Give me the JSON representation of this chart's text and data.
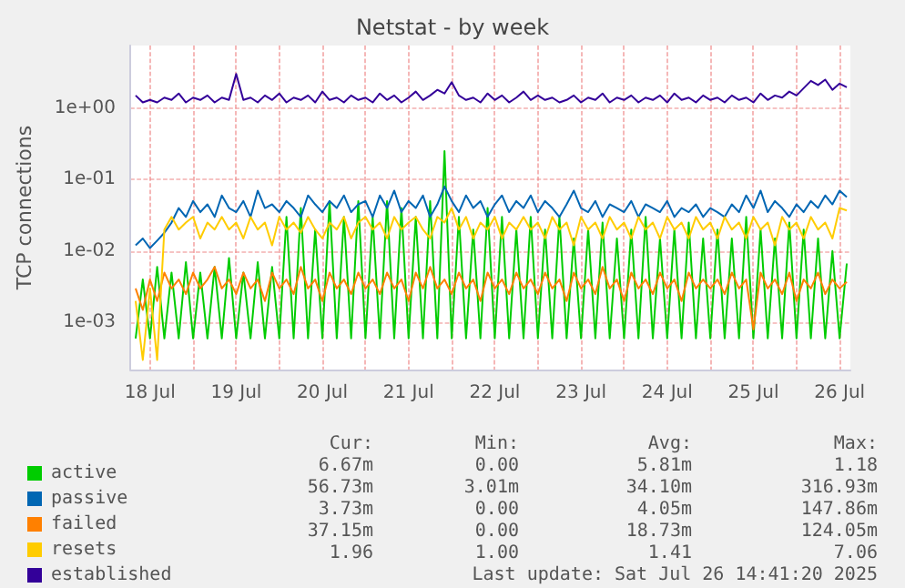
{
  "chart_data": {
    "type": "line",
    "title": "Netstat - by week",
    "ylabel": "TCP connections",
    "log": "y",
    "grid": true,
    "legend": "bottom left",
    "marker": "none",
    "line_style": "solid",
    "xlim": [
      "--07-18T06:30",
      "--07-26T15:00"
    ],
    "xticks": [
      {
        "value": "--07-18T12:00",
        "label": "18 Jul"
      },
      {
        "value": "--07-19T12:00",
        "label": "19 Jul"
      },
      {
        "value": "--07-20T12:00",
        "label": "20 Jul"
      },
      {
        "value": "--07-21T12:00",
        "label": "21 Jul"
      },
      {
        "value": "--07-22T12:00",
        "label": "22 Jul"
      },
      {
        "value": "--07-23T12:00",
        "label": "23 Jul"
      },
      {
        "value": "--07-24T12:00",
        "label": "24 Jul"
      },
      {
        "value": "--07-25T12:00",
        "label": "25 Jul"
      },
      {
        "value": "--07-26T12:00",
        "label": "26 Jul"
      },
      {
        "value": "--07-19T00:00",
        "label": null
      },
      {
        "value": "--07-20T00:00",
        "label": null
      },
      {
        "value": "--07-21T00:00",
        "label": null
      },
      {
        "value": "--07-22T00:00",
        "label": null
      },
      {
        "value": "--07-23T00:00",
        "label": null
      },
      {
        "value": "--07-24T00:00",
        "label": null
      },
      {
        "value": "--07-25T00:00",
        "label": null
      },
      {
        "value": "--07-26T00:00",
        "label": null
      }
    ],
    "ylim": [
      0.00022,
      7.5
    ],
    "yticks": [
      {
        "value": 0.001,
        "label": "1e-03"
      },
      {
        "value": 0.01,
        "label": "1e-02"
      },
      {
        "value": 0.1,
        "label": "1e-01"
      },
      {
        "value": 1,
        "label": "1e+00"
      }
    ],
    "x": [
      "--07-18T08:00",
      "--07-18T10:00",
      "--07-18T12:00",
      "--07-18T14:00",
      "--07-18T16:00",
      "--07-18T18:00",
      "--07-18T20:00",
      "--07-18T22:00",
      "--07-19T00:00",
      "--07-19T02:00",
      "--07-19T04:00",
      "--07-19T06:00",
      "--07-19T08:00",
      "--07-19T10:00",
      "--07-19T12:00",
      "--07-19T14:00",
      "--07-19T16:00",
      "--07-19T18:00",
      "--07-19T20:00",
      "--07-19T22:00",
      "--07-20T00:00",
      "--07-20T02:00",
      "--07-20T04:00",
      "--07-20T06:00",
      "--07-20T08:00",
      "--07-20T10:00",
      "--07-20T12:00",
      "--07-20T14:00",
      "--07-20T16:00",
      "--07-20T18:00",
      "--07-20T20:00",
      "--07-20T22:00",
      "--07-21T00:00",
      "--07-21T02:00",
      "--07-21T04:00",
      "--07-21T06:00",
      "--07-21T08:00",
      "--07-21T10:00",
      "--07-21T12:00",
      "--07-21T14:00",
      "--07-21T16:00",
      "--07-21T18:00",
      "--07-21T20:00",
      "--07-21T22:00",
      "--07-22T00:00",
      "--07-22T02:00",
      "--07-22T04:00",
      "--07-22T06:00",
      "--07-22T08:00",
      "--07-22T10:00",
      "--07-22T12:00",
      "--07-22T14:00",
      "--07-22T16:00",
      "--07-22T18:00",
      "--07-22T20:00",
      "--07-22T22:00",
      "--07-23T00:00",
      "--07-23T02:00",
      "--07-23T04:00",
      "--07-23T06:00",
      "--07-23T08:00",
      "--07-23T10:00",
      "--07-23T12:00",
      "--07-23T14:00",
      "--07-23T16:00",
      "--07-23T18:00",
      "--07-23T20:00",
      "--07-23T22:00",
      "--07-24T00:00",
      "--07-24T02:00",
      "--07-24T04:00",
      "--07-24T06:00",
      "--07-24T08:00",
      "--07-24T10:00",
      "--07-24T12:00",
      "--07-24T14:00",
      "--07-24T16:00",
      "--07-24T18:00",
      "--07-24T20:00",
      "--07-24T22:00",
      "--07-25T00:00",
      "--07-25T02:00",
      "--07-25T04:00",
      "--07-25T06:00",
      "--07-25T08:00",
      "--07-25T10:00",
      "--07-25T12:00",
      "--07-25T14:00",
      "--07-25T16:00",
      "--07-25T18:00",
      "--07-25T20:00",
      "--07-25T22:00",
      "--07-26T00:00",
      "--07-26T02:00",
      "--07-26T04:00",
      "--07-26T06:00",
      "--07-26T08:00",
      "--07-26T10:00",
      "--07-26T12:00",
      "--07-26T14:00"
    ],
    "series": [
      {
        "name": "active",
        "color": "#00cc00",
        "values": [
          0.0006,
          0.004,
          0.0006,
          0.006,
          0.0006,
          0.005,
          0.0006,
          0.007,
          0.0006,
          0.005,
          0.0006,
          0.006,
          0.0006,
          0.008,
          0.0006,
          0.005,
          0.0006,
          0.007,
          0.0006,
          0.006,
          0.0006,
          0.03,
          0.0006,
          0.04,
          0.0006,
          0.02,
          0.0006,
          0.05,
          0.0006,
          0.03,
          0.0006,
          0.05,
          0.0006,
          0.03,
          0.0006,
          0.05,
          0.0006,
          0.04,
          0.0006,
          0.03,
          0.0006,
          0.05,
          0.0006,
          0.25,
          0.0006,
          0.03,
          0.0006,
          0.02,
          0.0006,
          0.04,
          0.0006,
          0.03,
          0.0006,
          0.02,
          0.0006,
          0.03,
          0.0006,
          0.02,
          0.0006,
          0.03,
          0.0006,
          0.015,
          0.0006,
          0.02,
          0.0006,
          0.025,
          0.0006,
          0.015,
          0.0006,
          0.02,
          0.0006,
          0.03,
          0.0006,
          0.015,
          0.0006,
          0.02,
          0.0006,
          0.025,
          0.0006,
          0.015,
          0.0006,
          0.02,
          0.0006,
          0.015,
          0.0006,
          0.03,
          0.0006,
          0.02,
          0.0006,
          0.015,
          0.0006,
          0.025,
          0.0006,
          0.02,
          0.0006,
          0.015,
          0.0006,
          0.01,
          0.0006,
          0.0067
        ]
      },
      {
        "name": "passive",
        "color": "#0066b3",
        "values": [
          0.012,
          0.015,
          0.011,
          0.014,
          0.018,
          0.025,
          0.04,
          0.03,
          0.05,
          0.035,
          0.045,
          0.03,
          0.06,
          0.04,
          0.035,
          0.05,
          0.03,
          0.07,
          0.04,
          0.045,
          0.035,
          0.05,
          0.04,
          0.03,
          0.06,
          0.045,
          0.035,
          0.05,
          0.04,
          0.06,
          0.035,
          0.045,
          0.05,
          0.03,
          0.06,
          0.04,
          0.07,
          0.035,
          0.05,
          0.04,
          0.06,
          0.03,
          0.045,
          0.08,
          0.05,
          0.035,
          0.06,
          0.04,
          0.05,
          0.03,
          0.045,
          0.06,
          0.035,
          0.05,
          0.04,
          0.06,
          0.035,
          0.05,
          0.04,
          0.03,
          0.045,
          0.07,
          0.04,
          0.035,
          0.05,
          0.03,
          0.045,
          0.04,
          0.035,
          0.05,
          0.03,
          0.045,
          0.04,
          0.035,
          0.05,
          0.03,
          0.04,
          0.035,
          0.045,
          0.03,
          0.04,
          0.035,
          0.03,
          0.045,
          0.035,
          0.06,
          0.04,
          0.07,
          0.035,
          0.05,
          0.04,
          0.03,
          0.045,
          0.035,
          0.05,
          0.04,
          0.06,
          0.045,
          0.07,
          0.057
        ]
      },
      {
        "name": "failed",
        "color": "#ff8000",
        "values": [
          0.003,
          0.0015,
          0.004,
          0.002,
          0.005,
          0.003,
          0.004,
          0.0025,
          0.005,
          0.003,
          0.004,
          0.006,
          0.003,
          0.004,
          0.0025,
          0.005,
          0.003,
          0.004,
          0.002,
          0.005,
          0.003,
          0.004,
          0.0025,
          0.006,
          0.003,
          0.004,
          0.002,
          0.005,
          0.003,
          0.004,
          0.0025,
          0.005,
          0.003,
          0.004,
          0.0025,
          0.005,
          0.003,
          0.004,
          0.002,
          0.005,
          0.003,
          0.006,
          0.003,
          0.004,
          0.0025,
          0.005,
          0.003,
          0.004,
          0.002,
          0.005,
          0.003,
          0.004,
          0.0025,
          0.005,
          0.003,
          0.004,
          0.0025,
          0.005,
          0.003,
          0.004,
          0.002,
          0.005,
          0.003,
          0.004,
          0.0025,
          0.006,
          0.003,
          0.004,
          0.002,
          0.005,
          0.003,
          0.004,
          0.0025,
          0.005,
          0.003,
          0.004,
          0.002,
          0.005,
          0.003,
          0.004,
          0.003,
          0.004,
          0.0025,
          0.005,
          0.003,
          0.004,
          0.0008,
          0.005,
          0.003,
          0.004,
          0.0025,
          0.005,
          0.002,
          0.004,
          0.003,
          0.005,
          0.0025,
          0.004,
          0.003,
          0.0037
        ]
      },
      {
        "name": "resets",
        "color": "#ffcc00",
        "values": [
          0.002,
          0.0003,
          0.003,
          0.0003,
          0.02,
          0.03,
          0.02,
          0.025,
          0.03,
          0.015,
          0.025,
          0.02,
          0.03,
          0.02,
          0.025,
          0.015,
          0.03,
          0.02,
          0.025,
          0.012,
          0.03,
          0.02,
          0.025,
          0.018,
          0.03,
          0.02,
          0.015,
          0.025,
          0.02,
          0.03,
          0.015,
          0.025,
          0.03,
          0.02,
          0.025,
          0.015,
          0.03,
          0.02,
          0.025,
          0.03,
          0.02,
          0.015,
          0.03,
          0.025,
          0.04,
          0.02,
          0.03,
          0.015,
          0.025,
          0.02,
          0.03,
          0.015,
          0.025,
          0.02,
          0.03,
          0.02,
          0.025,
          0.015,
          0.03,
          0.02,
          0.025,
          0.012,
          0.03,
          0.02,
          0.025,
          0.015,
          0.03,
          0.02,
          0.025,
          0.015,
          0.03,
          0.02,
          0.025,
          0.015,
          0.03,
          0.02,
          0.025,
          0.015,
          0.03,
          0.02,
          0.025,
          0.015,
          0.03,
          0.02,
          0.025,
          0.015,
          0.03,
          0.02,
          0.025,
          0.012,
          0.03,
          0.02,
          0.025,
          0.015,
          0.03,
          0.02,
          0.025,
          0.015,
          0.04,
          0.037
        ]
      },
      {
        "name": "established",
        "color": "#330099",
        "values": [
          1.5,
          1.2,
          1.3,
          1.2,
          1.4,
          1.3,
          1.6,
          1.2,
          1.4,
          1.3,
          1.5,
          1.2,
          1.4,
          1.3,
          3.0,
          1.3,
          1.4,
          1.2,
          1.5,
          1.3,
          1.6,
          1.2,
          1.4,
          1.3,
          1.5,
          1.2,
          1.7,
          1.3,
          1.4,
          1.2,
          1.5,
          1.3,
          1.4,
          1.2,
          1.6,
          1.3,
          1.5,
          1.2,
          1.4,
          1.7,
          1.3,
          1.5,
          1.8,
          1.6,
          2.3,
          1.5,
          1.3,
          1.4,
          1.2,
          1.6,
          1.3,
          1.5,
          1.2,
          1.4,
          1.7,
          1.3,
          1.5,
          1.3,
          1.4,
          1.2,
          1.3,
          1.5,
          1.2,
          1.4,
          1.3,
          1.6,
          1.2,
          1.4,
          1.3,
          1.5,
          1.2,
          1.4,
          1.3,
          1.5,
          1.2,
          1.6,
          1.3,
          1.4,
          1.2,
          1.5,
          1.3,
          1.4,
          1.2,
          1.5,
          1.3,
          1.4,
          1.2,
          1.6,
          1.3,
          1.5,
          1.4,
          1.7,
          1.5,
          1.9,
          2.4,
          2.1,
          2.5,
          1.8,
          2.2,
          1.96
        ]
      }
    ],
    "annotations": [
      "Cur:",
      "Min:",
      "Avg:",
      "Max:",
      "6.67m",
      "0.00",
      "5.81m",
      "1.18",
      "56.73m",
      "3.01m",
      "34.10m",
      "316.93m",
      "3.73m",
      "0.00",
      "4.05m",
      "147.86m",
      "37.15m",
      "0.00",
      "18.73m",
      "124.05m",
      "1.96",
      "1.00",
      "1.41",
      "7.06",
      "Last update: Sat Jul 26 14:41:20 2025"
    ]
  }
}
